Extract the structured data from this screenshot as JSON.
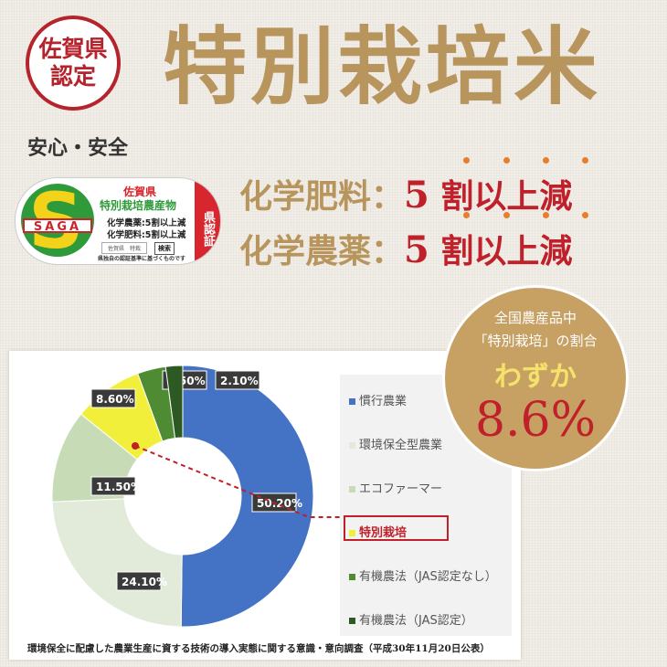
{
  "seal": {
    "line1": "佐賀県",
    "line2": "認定"
  },
  "tagline": "安心・安全",
  "title": "特別栽培米",
  "badge": {
    "logo_letter": "S",
    "logo_text": "SAGA",
    "pref": "佐賀県",
    "name": "特別栽培農産物",
    "line1": "化学農薬:5割以上減",
    "line2": "化学肥料:5割以上減",
    "box1": "佐賀県　特栽",
    "box2": "検索",
    "footer": "県独自の認証基準に基づくものです",
    "side": "県認証"
  },
  "claims": [
    {
      "label": "化学肥料：",
      "num": "5",
      "rest": "割以上減"
    },
    {
      "label": "化学農薬：",
      "num": "5",
      "rest": "割以上減"
    }
  ],
  "circle": {
    "line1": "全国農産品中",
    "line2": "「特別栽培」の割合",
    "line3": "わずか",
    "value": "8.6%"
  },
  "chart_data": {
    "type": "pie",
    "donut": true,
    "categories": [
      "慣行農業",
      "環境保全型農業",
      "エコファーマー",
      "特別栽培",
      "有機農法（JAS認定なし）",
      "有機農法（JAS認定）"
    ],
    "values": [
      50.2,
      24.1,
      11.5,
      8.6,
      3.5,
      2.1
    ],
    "labels": [
      "50.20%",
      "24.10%",
      "11.50%",
      "8.60%",
      "3.50%",
      "2.10%"
    ],
    "colors": [
      "#4472c4",
      "#e2ebd9",
      "#c6dbb6",
      "#f2ef3a",
      "#4f8b33",
      "#2d5a22"
    ],
    "highlight": "特別栽培",
    "legend": "right"
  },
  "source": "環境保全に配慮した農業生産に資する技術の導入実態に関する意識・意向調査（平成30年11月20日公表）"
}
